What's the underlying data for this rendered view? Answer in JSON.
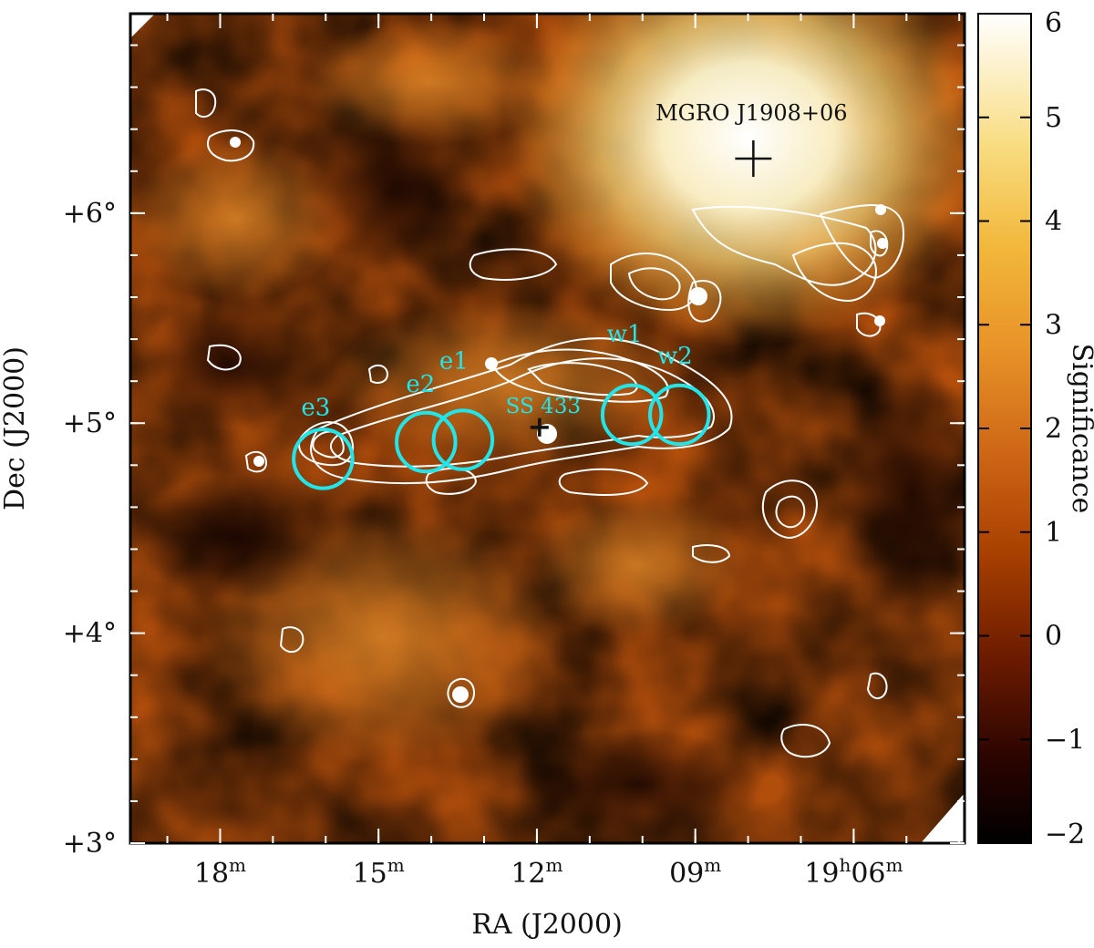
{
  "chart_data": {
    "type": "heatmap",
    "title": "",
    "xlabel": "RA (J2000)",
    "ylabel": "Dec (J2000)",
    "colorbar_label": "Significance",
    "colorbar_ticks": [
      "6",
      "5",
      "4",
      "3",
      "2",
      "1",
      "0",
      "−1",
      "−2"
    ],
    "colorbar_range": [
      -2,
      6
    ],
    "colormap": [
      "#000000",
      "#3a0800",
      "#8a2a00",
      "#c45a10",
      "#e88a22",
      "#f4b43c",
      "#f8dc7c",
      "#ffffff"
    ],
    "x_ticks": [
      {
        "label": "18",
        "sup": "m",
        "ra_min": 18
      },
      {
        "label": "15",
        "sup": "m",
        "ra_min": 15
      },
      {
        "label": "12",
        "sup": "m",
        "ra_min": 12
      },
      {
        "label": "09",
        "sup": "m",
        "ra_min": 9
      },
      {
        "label": "19",
        "sup": "h",
        "label2": "06",
        "sup2": "m",
        "ra_min": 6
      }
    ],
    "y_ticks": [
      {
        "label": "+6°",
        "dec": 6
      },
      {
        "label": "+5°",
        "dec": 5
      },
      {
        "label": "+4°",
        "dec": 4
      },
      {
        "label": "+3°",
        "dec": 3
      }
    ],
    "xlim_ra_min": [
      19.7,
      3.9
    ],
    "ylim_dec": [
      3.0,
      6.95
    ],
    "sources": [
      {
        "name": "MGRO J1908+06",
        "ra_min": 7.9,
        "dec": 6.26,
        "color": "#111111"
      },
      {
        "name": "SS 433",
        "ra_min": 11.95,
        "dec": 4.98,
        "color": "#111111"
      }
    ],
    "regions": [
      {
        "name": "e3",
        "ra_min": 16.05,
        "dec": 4.83,
        "radius_deg": 0.14
      },
      {
        "name": "e2",
        "ra_min": 14.1,
        "dec": 4.91,
        "radius_deg": 0.14
      },
      {
        "name": "e1",
        "ra_min": 13.4,
        "dec": 4.92,
        "radius_deg": 0.14
      },
      {
        "name": "w1",
        "ra_min": 10.2,
        "dec": 5.04,
        "radius_deg": 0.14
      },
      {
        "name": "w2",
        "ra_min": 9.3,
        "dec": 5.04,
        "radius_deg": 0.14
      }
    ],
    "region_color": "#22e5ea",
    "contour_color": "#ffffff"
  }
}
